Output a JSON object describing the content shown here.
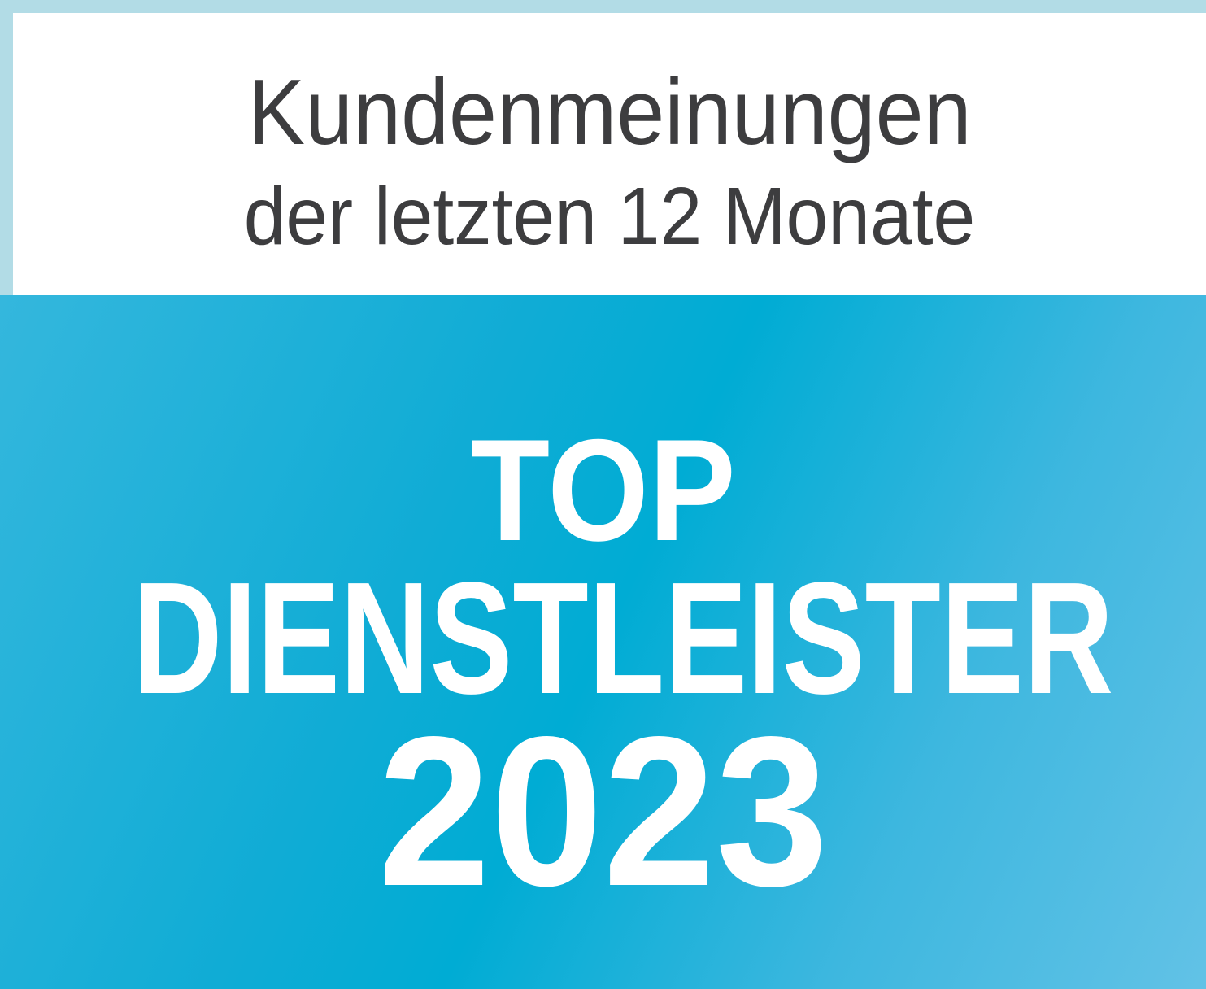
{
  "header": {
    "line1": "Kundenmeinungen",
    "line2": "der letzten 12 Monate"
  },
  "badge": {
    "line1": "TOP",
    "line2": "DIENSTLEISTER",
    "line3": "2023"
  },
  "colors": {
    "border": "#b2dce6",
    "accent_blue": "#00acd4",
    "text_dark": "#3d3d3f",
    "text_light": "#ffffff"
  }
}
